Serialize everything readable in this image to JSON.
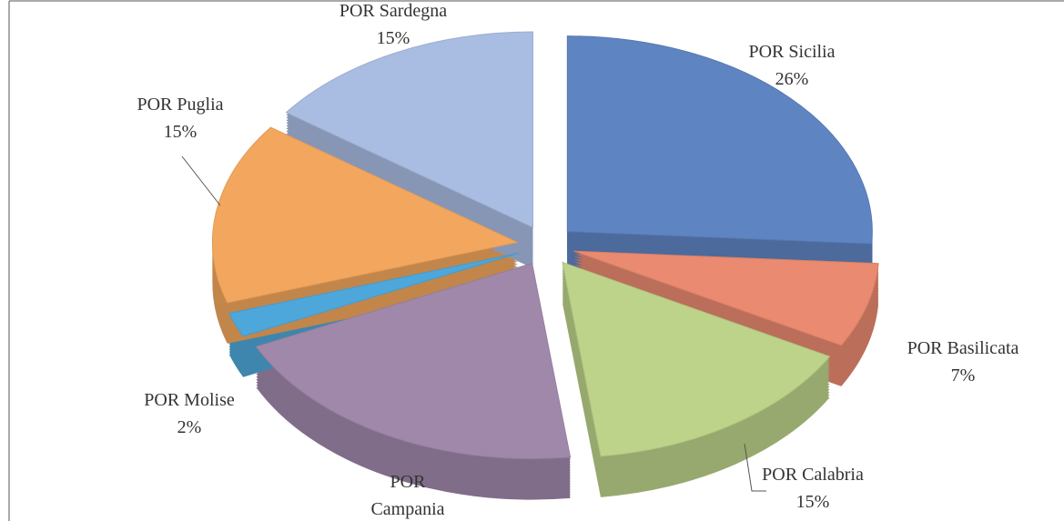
{
  "chart_data": {
    "type": "pie",
    "categories": [
      "POR Sicilia",
      "POR Basilicata",
      "POR Calabria",
      "POR Campania",
      "POR Molise",
      "POR Puglia",
      "POR Sardegna"
    ],
    "values": [
      26,
      7,
      15,
      20,
      2,
      15,
      15
    ],
    "value_labels": [
      "26%",
      "7%",
      "15%",
      null,
      "2%",
      "15%",
      "15%"
    ],
    "colors": [
      "#5f84c2",
      "#ea8a70",
      "#bdd38a",
      "#a088ab",
      "#4ea7da",
      "#f3a75e",
      "#a9bce2"
    ]
  }
}
